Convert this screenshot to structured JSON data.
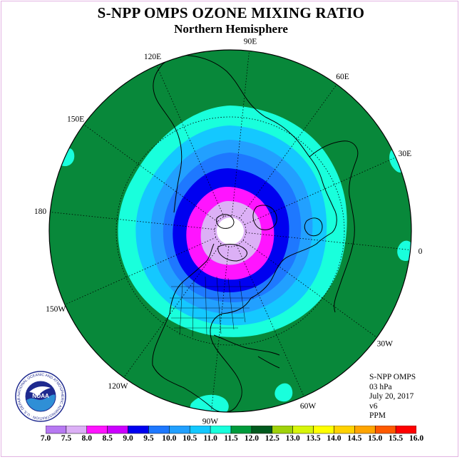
{
  "title": "S-NPP OMPS OZONE MIXING RATIO",
  "subtitle": "Northern Hemisphere",
  "info_lines": [
    "S-NPP OMPS",
    "03 hPa",
    "July 20, 2017",
    "v6",
    "PPM"
  ],
  "logo": {
    "text": "NOAA",
    "ring_text": "NATIONAL OCEANIC AND ATMOSPHERIC ADMINISTRATION · U.S. DEPARTMENT OF COMMERCE",
    "colors": {
      "blue_top": "#1f2a8f",
      "blue_mid": "#3b62c9",
      "water": "#2f8fd6",
      "bird": "#ffffff"
    }
  },
  "longitude_labels": [
    {
      "lon": 90,
      "text": "90E"
    },
    {
      "lon": 60,
      "text": "60E"
    },
    {
      "lon": 30,
      "text": "30E"
    },
    {
      "lon": 0,
      "text": "0"
    },
    {
      "lon": -30,
      "text": "30W"
    },
    {
      "lon": -60,
      "text": "60W"
    },
    {
      "lon": -90,
      "text": "90W"
    },
    {
      "lon": -120,
      "text": "120W"
    },
    {
      "lon": -150,
      "text": "150W"
    },
    {
      "lon": 180,
      "text": "180"
    },
    {
      "lon": 150,
      "text": "150E"
    },
    {
      "lon": 120,
      "text": "120E"
    }
  ],
  "colorbar": {
    "ticks": [
      "7.0",
      "7.5",
      "8.0",
      "8.5",
      "9.0",
      "9.5",
      "10.0",
      "10.5",
      "11.0",
      "11.5",
      "12.0",
      "12.5",
      "13.0",
      "13.5",
      "14.0",
      "14.5",
      "15.0",
      "15.5",
      "16.0"
    ],
    "colors": [
      "#b779f2",
      "#dcb0f6",
      "#ff14ff",
      "#cc00ff",
      "#0000f0",
      "#1e78ff",
      "#22a0ff",
      "#14c8ff",
      "#19ffdc",
      "#009b3c",
      "#005a1e",
      "#a0d20a",
      "#d7f50a",
      "#ffff00",
      "#ffd200",
      "#ffa500",
      "#ff5a00",
      "#ff0000",
      "#8b5a3c"
    ]
  },
  "map_colors": {
    "background_ring": "#08883a",
    "band_11": "#19ffdc",
    "band_10_5": "#14c8ff",
    "band_10": "#22a0ff",
    "band_9_5": "#1e78ff",
    "band_9": "#0000f0",
    "band_8": "#ff14ff",
    "band_7_5": "#dcb0f6",
    "pole": "#ffffff"
  }
}
